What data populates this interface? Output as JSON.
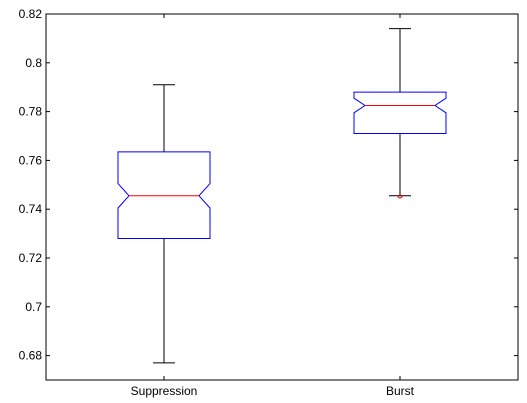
{
  "chart_data": {
    "type": "box",
    "title": "",
    "xlabel": "",
    "ylabel": "",
    "categories": [
      "Suppression",
      "Burst"
    ],
    "ylim": [
      0.67,
      0.82
    ],
    "yticks": [
      0.68,
      0.7,
      0.72,
      0.74,
      0.76,
      0.78,
      0.8,
      0.82
    ],
    "ytick_labels": [
      "0.68",
      "0.7",
      "0.72",
      "0.74",
      "0.76",
      "0.78",
      "0.8",
      "0.82"
    ],
    "notched": true,
    "grid": false,
    "boxes": [
      {
        "name": "Suppression",
        "min": 0.677,
        "q1": 0.728,
        "median": 0.7455,
        "q3": 0.7635,
        "max": 0.791,
        "notch_low": 0.7405,
        "notch_high": 0.7505,
        "outliers": []
      },
      {
        "name": "Burst",
        "min": 0.7455,
        "q1": 0.771,
        "median": 0.7825,
        "q3": 0.788,
        "max": 0.814,
        "notch_low": 0.7795,
        "notch_high": 0.7855,
        "outliers": [
          0.745
        ]
      }
    ],
    "colors": {
      "box": "#0000ff",
      "median": "#ff0000",
      "whisker": "#000000",
      "outlier": "#ff0000",
      "axes": "#000000"
    }
  }
}
